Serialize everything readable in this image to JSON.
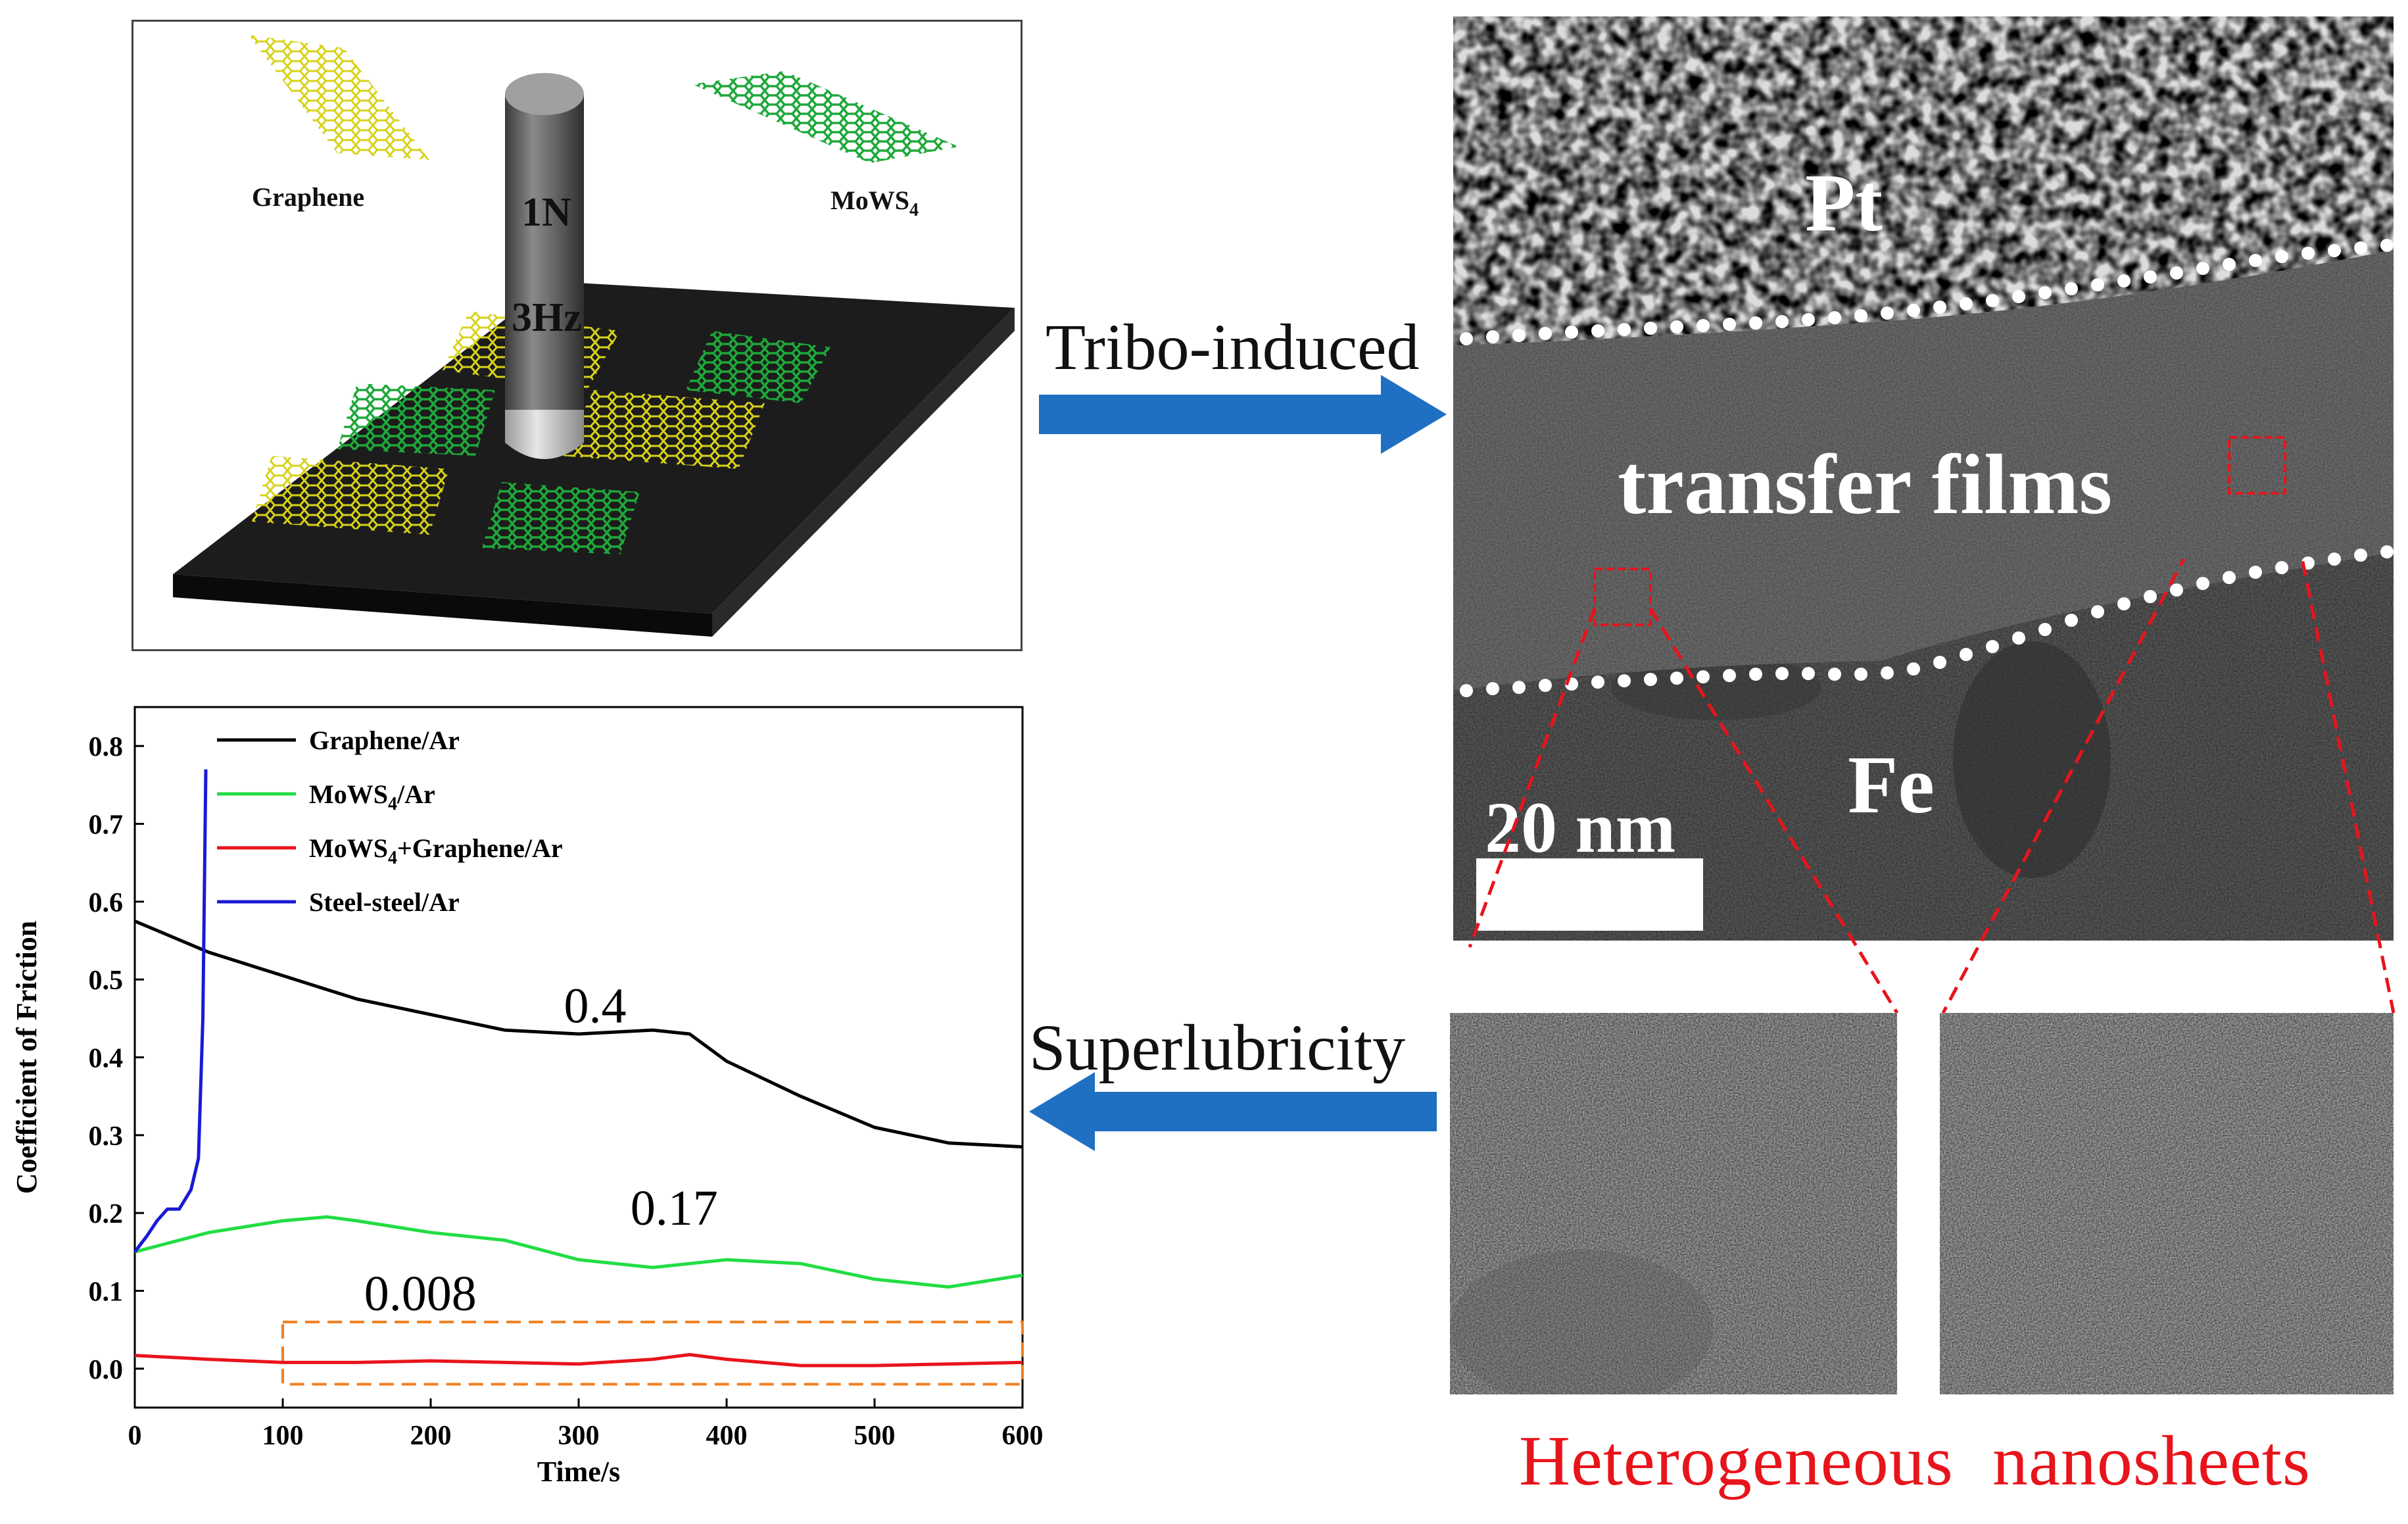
{
  "schematic": {
    "label_graphene": "Graphene",
    "label_mows4_main": "MoWS",
    "label_mows4_sub": "4",
    "label_load": "1N",
    "label_freq": "3Hz"
  },
  "arrows": {
    "top_label": "Tribo-induced",
    "bottom_label": "Superlubricity",
    "color": "#1f6fc2"
  },
  "tem": {
    "label_pt": "Pt",
    "label_transfer": "transfer films",
    "label_fe": "Fe",
    "scale_bar": "20 nm"
  },
  "captions": {
    "left": "Heterogeneous",
    "right": "nanosheets",
    "color": "#e8141b"
  },
  "chart_data": {
    "type": "line",
    "xlabel": "Time/s",
    "ylabel": "Coefficient of Friction",
    "xlim": [
      0,
      600
    ],
    "ylim": [
      -0.05,
      0.85
    ],
    "xticks": [
      0,
      100,
      200,
      300,
      400,
      500,
      600
    ],
    "yticks": [
      0.0,
      0.1,
      0.2,
      0.3,
      0.4,
      0.5,
      0.6,
      0.7,
      0.8
    ],
    "legend_position": "top-left",
    "series": [
      {
        "name": "Graphene/Ar",
        "color": "#000000",
        "x": [
          0,
          50,
          100,
          150,
          200,
          250,
          300,
          350,
          375,
          400,
          450,
          500,
          550,
          600
        ],
        "y": [
          0.575,
          0.535,
          0.505,
          0.475,
          0.455,
          0.435,
          0.43,
          0.435,
          0.43,
          0.395,
          0.35,
          0.31,
          0.29,
          0.285
        ]
      },
      {
        "name": "MoWS4/Ar",
        "color": "#22dd44",
        "x": [
          0,
          50,
          100,
          130,
          150,
          200,
          250,
          300,
          350,
          400,
          450,
          500,
          550,
          600
        ],
        "y": [
          0.15,
          0.175,
          0.19,
          0.195,
          0.19,
          0.175,
          0.165,
          0.14,
          0.13,
          0.14,
          0.135,
          0.115,
          0.105,
          0.12
        ]
      },
      {
        "name": "MoWS4+Graphene/Ar",
        "color": "#e8141b",
        "x": [
          0,
          50,
          100,
          150,
          200,
          250,
          300,
          350,
          375,
          400,
          450,
          500,
          550,
          600
        ],
        "y": [
          0.017,
          0.012,
          0.008,
          0.008,
          0.01,
          0.008,
          0.006,
          0.012,
          0.018,
          0.012,
          0.004,
          0.004,
          0.006,
          0.008
        ]
      },
      {
        "name": "Steel-steel/Ar",
        "color": "#1a1ad6",
        "x": [
          0,
          8,
          15,
          22,
          30,
          38,
          43,
          46,
          48
        ],
        "y": [
          0.15,
          0.17,
          0.19,
          0.205,
          0.205,
          0.23,
          0.27,
          0.45,
          0.77
        ]
      }
    ],
    "legend": [
      {
        "label": "Graphene/Ar",
        "color": "#000000"
      },
      {
        "label_main": "MoWS",
        "label_sub": "4",
        "label_rest": "/Ar",
        "color": "#22dd44"
      },
      {
        "label_main": "MoWS",
        "label_sub": "4",
        "label_rest": "+Graphene/Ar",
        "color": "#e8141b"
      },
      {
        "label": "Steel-steel/Ar",
        "color": "#1a1ad6"
      }
    ],
    "annotations": [
      {
        "text": "0.4",
        "x": 290,
        "y": 0.445
      },
      {
        "text": "0.17",
        "x": 335,
        "y": 0.185
      },
      {
        "text": "0.008",
        "x": 155,
        "y": 0.075
      }
    ],
    "highlight_box": {
      "x": [
        100,
        600
      ],
      "y": [
        -0.02,
        0.06
      ],
      "color": "#f08020"
    }
  }
}
